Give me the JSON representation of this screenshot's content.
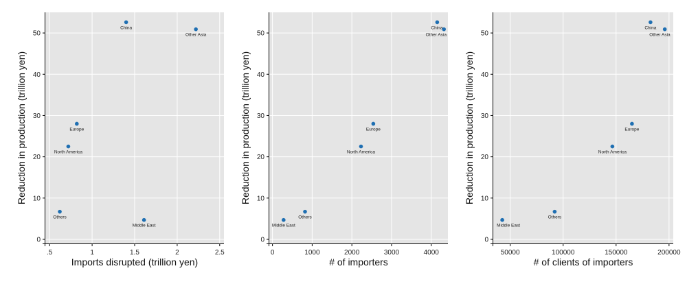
{
  "chart_data": [
    {
      "type": "scatter",
      "xlabel": "Imports disrupted (trillion yen)",
      "ylabel": "Reduction in production (trillion yen)",
      "xlim": [
        0.45,
        2.55
      ],
      "ylim": [
        -1,
        55
      ],
      "xticks": [
        0.5,
        1,
        1.5,
        2,
        2.5
      ],
      "xtick_labels": [
        ".5",
        "1",
        "1.5",
        "2",
        "2.5"
      ],
      "yticks": [
        0,
        10,
        20,
        30,
        40,
        50
      ],
      "ytick_labels": [
        "0",
        "10",
        "20",
        "30",
        "40",
        "50"
      ],
      "grid": true,
      "points": [
        {
          "label": "China",
          "x": 1.4,
          "y": 52.6
        },
        {
          "label": "Other Asia",
          "x": 2.22,
          "y": 50.9
        },
        {
          "label": "Europe",
          "x": 0.82,
          "y": 28.0
        },
        {
          "label": "North America",
          "x": 0.72,
          "y": 22.5
        },
        {
          "label": "Others",
          "x": 0.62,
          "y": 6.7
        },
        {
          "label": "Middle East",
          "x": 1.61,
          "y": 4.7
        }
      ]
    },
    {
      "type": "scatter",
      "xlabel": "# of importers",
      "ylabel": "Reduction in production (trillion yen)",
      "xlim": [
        -80,
        4420
      ],
      "ylim": [
        -1,
        55
      ],
      "xticks": [
        0,
        1000,
        2000,
        3000,
        4000
      ],
      "xtick_labels": [
        "0",
        "1000",
        "2000",
        "3000",
        "4000"
      ],
      "yticks": [
        0,
        10,
        20,
        30,
        40,
        50
      ],
      "ytick_labels": [
        "0",
        "10",
        "20",
        "30",
        "40",
        "50"
      ],
      "grid": true,
      "points": [
        {
          "label": "China",
          "x": 4150,
          "y": 52.6
        },
        {
          "label": "Other Asia",
          "x": 4320,
          "y": 50.9
        },
        {
          "label": "Europe",
          "x": 2540,
          "y": 28.0
        },
        {
          "label": "North America",
          "x": 2230,
          "y": 22.5
        },
        {
          "label": "Others",
          "x": 820,
          "y": 6.7
        },
        {
          "label": "Middle East",
          "x": 280,
          "y": 4.7
        }
      ]
    },
    {
      "type": "scatter",
      "xlabel": "# of clients of importers",
      "ylabel": "Reduction in production (trillion yen)",
      "xlim": [
        34000,
        204000
      ],
      "ylim": [
        -1,
        55
      ],
      "xticks": [
        50000,
        100000,
        150000,
        200000
      ],
      "xtick_labels": [
        "50000",
        "100000",
        "150000",
        "200000"
      ],
      "yticks": [
        0,
        10,
        20,
        30,
        40,
        50
      ],
      "ytick_labels": [
        "0",
        "10",
        "20",
        "30",
        "40",
        "50"
      ],
      "grid": true,
      "points": [
        {
          "label": "China",
          "x": 182500,
          "y": 52.6
        },
        {
          "label": "Other Asia",
          "x": 196000,
          "y": 50.9
        },
        {
          "label": "Europe",
          "x": 165000,
          "y": 28.0
        },
        {
          "label": "North America",
          "x": 146500,
          "y": 22.5
        },
        {
          "label": "Others",
          "x": 92000,
          "y": 6.7
        },
        {
          "label": "Middle East",
          "x": 42500,
          "y": 4.7
        }
      ]
    }
  ],
  "colors": {
    "marker": "#1f6fb2",
    "plot_background": "#e5e5e5",
    "gridline": "#ffffff"
  }
}
